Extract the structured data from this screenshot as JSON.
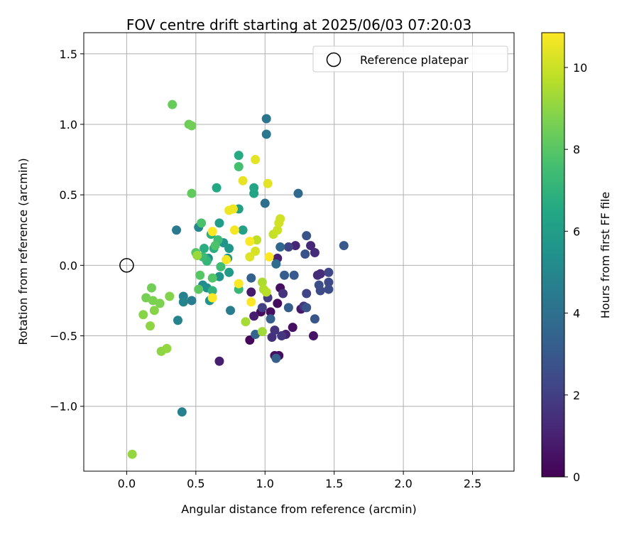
{
  "chart_data": {
    "type": "scatter",
    "title": "FOV centre drift starting at 2025/06/03 07:20:03",
    "xlabel": "Angular distance from reference (arcmin)",
    "ylabel": "Rotation from reference (arcmin)",
    "xlim": [
      -0.31,
      2.8
    ],
    "ylim": [
      -1.46,
      1.65
    ],
    "xticks": [
      0.0,
      0.5,
      1.0,
      1.5,
      2.0,
      2.5
    ],
    "xtick_labels": [
      "0.0",
      "0.5",
      "1.0",
      "1.5",
      "2.0",
      "2.5"
    ],
    "yticks": [
      -1.0,
      -0.5,
      0.0,
      0.5,
      1.0,
      1.5
    ],
    "ytick_labels": [
      "−1.0",
      "−0.5",
      "0.0",
      "0.5",
      "1.0",
      "1.5"
    ],
    "grid": true,
    "legend": {
      "placement": "top-right",
      "entries": [
        "Reference platepar"
      ]
    },
    "reference_point": {
      "x": 0.0,
      "y": 0.0,
      "label": "Reference platepar"
    },
    "colorbar": {
      "label": "Hours from first FF file",
      "colormap": "viridis",
      "range": [
        0,
        10.85
      ],
      "ticks": [
        0,
        2,
        4,
        6,
        8,
        10
      ],
      "tick_labels": [
        "0",
        "2",
        "4",
        "6",
        "8",
        "10"
      ]
    },
    "points": [
      {
        "x": 0.89,
        "y": -0.53,
        "h": 0.2
      },
      {
        "x": 0.97,
        "y": -0.33,
        "h": 0.3
      },
      {
        "x": 1.04,
        "y": -0.33,
        "h": 0.4
      },
      {
        "x": 1.09,
        "y": -0.27,
        "h": 0.3
      },
      {
        "x": 1.11,
        "y": -0.16,
        "h": 0.4
      },
      {
        "x": 1.2,
        "y": -0.44,
        "h": 0.5
      },
      {
        "x": 1.07,
        "y": -0.64,
        "h": 0.5
      },
      {
        "x": 1.1,
        "y": -0.64,
        "h": 0.4
      },
      {
        "x": 1.35,
        "y": -0.5,
        "h": 0.6
      },
      {
        "x": 1.26,
        "y": -0.31,
        "h": 0.7
      },
      {
        "x": 0.67,
        "y": -0.68,
        "h": 0.9
      },
      {
        "x": 0.9,
        "y": -0.19,
        "h": 0.8
      },
      {
        "x": 0.92,
        "y": -0.36,
        "h": 0.9
      },
      {
        "x": 1.15,
        "y": -0.49,
        "h": 1.0
      },
      {
        "x": 1.22,
        "y": 0.14,
        "h": 1.1
      },
      {
        "x": 1.09,
        "y": 0.05,
        "h": 1.0
      },
      {
        "x": 1.33,
        "y": 0.14,
        "h": 1.2
      },
      {
        "x": 1.4,
        "y": -0.06,
        "h": 1.3
      },
      {
        "x": 1.38,
        "y": -0.07,
        "h": 1.4
      },
      {
        "x": 1.36,
        "y": 0.09,
        "h": 1.4
      },
      {
        "x": 1.05,
        "y": -0.51,
        "h": 1.5
      },
      {
        "x": 1.07,
        "y": -0.46,
        "h": 1.6
      },
      {
        "x": 1.13,
        "y": -0.2,
        "h": 1.6
      },
      {
        "x": 1.12,
        "y": -0.5,
        "h": 1.7
      },
      {
        "x": 1.28,
        "y": -0.29,
        "h": 1.8
      },
      {
        "x": 1.02,
        "y": -0.23,
        "h": 1.9
      },
      {
        "x": 0.98,
        "y": -0.3,
        "h": 2.0
      },
      {
        "x": 1.17,
        "y": 0.13,
        "h": 2.1
      },
      {
        "x": 1.3,
        "y": -0.2,
        "h": 2.2
      },
      {
        "x": 1.46,
        "y": -0.05,
        "h": 2.3
      },
      {
        "x": 1.46,
        "y": -0.12,
        "h": 2.4
      },
      {
        "x": 1.46,
        "y": -0.17,
        "h": 2.5
      },
      {
        "x": 1.4,
        "y": -0.18,
        "h": 2.5
      },
      {
        "x": 1.39,
        "y": -0.14,
        "h": 2.6
      },
      {
        "x": 1.29,
        "y": 0.08,
        "h": 2.7
      },
      {
        "x": 1.3,
        "y": 0.21,
        "h": 2.8
      },
      {
        "x": 1.3,
        "y": -0.3,
        "h": 2.8
      },
      {
        "x": 1.36,
        "y": -0.38,
        "h": 2.9
      },
      {
        "x": 1.57,
        "y": 0.14,
        "h": 3.0
      },
      {
        "x": 1.21,
        "y": -0.07,
        "h": 3.1
      },
      {
        "x": 1.17,
        "y": -0.3,
        "h": 3.2
      },
      {
        "x": 1.14,
        "y": -0.07,
        "h": 3.2
      },
      {
        "x": 1.04,
        "y": -0.38,
        "h": 3.3
      },
      {
        "x": 1.08,
        "y": -0.66,
        "h": 3.3
      },
      {
        "x": 0.9,
        "y": -0.09,
        "h": 3.4
      },
      {
        "x": 0.93,
        "y": -0.49,
        "h": 3.5
      },
      {
        "x": 1.11,
        "y": 0.13,
        "h": 3.6
      },
      {
        "x": 1.24,
        "y": 0.51,
        "h": 3.7
      },
      {
        "x": 1.08,
        "y": 0.01,
        "h": 3.8
      },
      {
        "x": 1.0,
        "y": 0.44,
        "h": 4.0
      },
      {
        "x": 1.01,
        "y": 1.04,
        "h": 4.2
      },
      {
        "x": 1.01,
        "y": 0.93,
        "h": 4.3
      },
      {
        "x": 0.36,
        "y": 0.25,
        "h": 4.4
      },
      {
        "x": 0.75,
        "y": -0.32,
        "h": 4.5
      },
      {
        "x": 0.47,
        "y": -0.25,
        "h": 4.6
      },
      {
        "x": 0.41,
        "y": -0.22,
        "h": 4.7
      },
      {
        "x": 0.4,
        "y": -1.04,
        "h": 4.7
      },
      {
        "x": 0.37,
        "y": -0.39,
        "h": 4.8
      },
      {
        "x": 0.41,
        "y": -0.26,
        "h": 4.9
      },
      {
        "x": 0.52,
        "y": 0.27,
        "h": 5.0
      },
      {
        "x": 0.51,
        "y": 0.07,
        "h": 5.1
      },
      {
        "x": 0.55,
        "y": -0.14,
        "h": 5.2
      },
      {
        "x": 0.59,
        "y": 0.05,
        "h": 5.3
      },
      {
        "x": 0.58,
        "y": -0.16,
        "h": 5.4
      },
      {
        "x": 0.67,
        "y": -0.08,
        "h": 5.5
      },
      {
        "x": 0.6,
        "y": -0.25,
        "h": 5.6
      },
      {
        "x": 0.7,
        "y": 0.16,
        "h": 5.6
      },
      {
        "x": 0.74,
        "y": 0.12,
        "h": 5.7
      },
      {
        "x": 0.73,
        "y": 0.05,
        "h": 5.8
      },
      {
        "x": 0.74,
        "y": -0.05,
        "h": 5.9
      },
      {
        "x": 0.67,
        "y": 0.3,
        "h": 6.0
      },
      {
        "x": 0.81,
        "y": 0.4,
        "h": 6.1
      },
      {
        "x": 0.84,
        "y": 0.25,
        "h": 6.2
      },
      {
        "x": 0.92,
        "y": 0.51,
        "h": 6.3
      },
      {
        "x": 0.92,
        "y": 0.55,
        "h": 6.4
      },
      {
        "x": 0.65,
        "y": 0.55,
        "h": 6.5
      },
      {
        "x": 0.81,
        "y": 0.78,
        "h": 6.6
      },
      {
        "x": 0.57,
        "y": 0.05,
        "h": 6.6
      },
      {
        "x": 0.63,
        "y": 0.12,
        "h": 6.7
      },
      {
        "x": 0.56,
        "y": 0.12,
        "h": 6.8
      },
      {
        "x": 0.61,
        "y": 0.22,
        "h": 6.9
      },
      {
        "x": 0.62,
        "y": -0.18,
        "h": 7.0
      },
      {
        "x": 0.58,
        "y": 0.03,
        "h": 7.1
      },
      {
        "x": 0.81,
        "y": -0.17,
        "h": 7.2
      },
      {
        "x": 0.55,
        "y": 0.06,
        "h": 7.3
      },
      {
        "x": 0.66,
        "y": 0.18,
        "h": 7.4
      },
      {
        "x": 0.68,
        "y": -0.01,
        "h": 7.5
      },
      {
        "x": 0.81,
        "y": 0.7,
        "h": 7.6
      },
      {
        "x": 0.54,
        "y": 0.3,
        "h": 7.7
      },
      {
        "x": 0.64,
        "y": 0.14,
        "h": 7.8
      },
      {
        "x": 0.62,
        "y": -0.09,
        "h": 7.9
      },
      {
        "x": 0.53,
        "y": -0.07,
        "h": 8.0
      },
      {
        "x": 0.5,
        "y": 0.09,
        "h": 8.0
      },
      {
        "x": 0.52,
        "y": -0.17,
        "h": 8.1
      },
      {
        "x": 0.47,
        "y": 0.51,
        "h": 8.2
      },
      {
        "x": 0.33,
        "y": 1.14,
        "h": 8.3
      },
      {
        "x": 0.45,
        "y": 1.0,
        "h": 8.4
      },
      {
        "x": 0.47,
        "y": 0.99,
        "h": 8.5
      },
      {
        "x": 0.18,
        "y": -0.16,
        "h": 8.5
      },
      {
        "x": 0.14,
        "y": -0.23,
        "h": 8.6
      },
      {
        "x": 0.19,
        "y": -0.25,
        "h": 8.7
      },
      {
        "x": 0.24,
        "y": -0.27,
        "h": 8.7
      },
      {
        "x": 0.31,
        "y": -0.22,
        "h": 8.8
      },
      {
        "x": 0.2,
        "y": -0.32,
        "h": 8.9
      },
      {
        "x": 0.12,
        "y": -0.35,
        "h": 8.9
      },
      {
        "x": 0.17,
        "y": -0.43,
        "h": 9.0
      },
      {
        "x": 0.25,
        "y": -0.61,
        "h": 9.0
      },
      {
        "x": 0.29,
        "y": -0.59,
        "h": 9.1
      },
      {
        "x": 0.04,
        "y": -1.34,
        "h": 9.1
      },
      {
        "x": 0.51,
        "y": 0.07,
        "h": 9.2
      },
      {
        "x": 0.98,
        "y": -0.47,
        "h": 9.3
      },
      {
        "x": 0.86,
        "y": -0.4,
        "h": 9.4
      },
      {
        "x": 0.98,
        "y": -0.12,
        "h": 9.5
      },
      {
        "x": 0.99,
        "y": -0.17,
        "h": 9.6
      },
      {
        "x": 1.01,
        "y": -0.19,
        "h": 9.7
      },
      {
        "x": 0.94,
        "y": 0.18,
        "h": 9.8
      },
      {
        "x": 1.06,
        "y": 0.22,
        "h": 9.9
      },
      {
        "x": 1.09,
        "y": 0.25,
        "h": 10.0
      },
      {
        "x": 1.1,
        "y": 0.3,
        "h": 10.1
      },
      {
        "x": 1.11,
        "y": 0.33,
        "h": 10.1
      },
      {
        "x": 0.93,
        "y": 0.1,
        "h": 10.2
      },
      {
        "x": 0.89,
        "y": 0.06,
        "h": 10.3
      },
      {
        "x": 0.93,
        "y": 0.75,
        "h": 10.4
      },
      {
        "x": 1.02,
        "y": 0.58,
        "h": 10.4
      },
      {
        "x": 0.84,
        "y": 0.6,
        "h": 10.5
      },
      {
        "x": 0.74,
        "y": 0.39,
        "h": 10.6
      },
      {
        "x": 0.77,
        "y": 0.4,
        "h": 10.6
      },
      {
        "x": 0.78,
        "y": 0.25,
        "h": 10.7
      },
      {
        "x": 0.72,
        "y": 0.04,
        "h": 10.7
      },
      {
        "x": 0.89,
        "y": 0.17,
        "h": 10.8
      },
      {
        "x": 0.81,
        "y": -0.13,
        "h": 10.8
      },
      {
        "x": 0.62,
        "y": -0.23,
        "h": 10.8
      },
      {
        "x": 0.62,
        "y": 0.24,
        "h": 10.85
      },
      {
        "x": 1.03,
        "y": 0.06,
        "h": 10.85
      },
      {
        "x": 0.9,
        "y": -0.26,
        "h": 10.85
      }
    ]
  }
}
